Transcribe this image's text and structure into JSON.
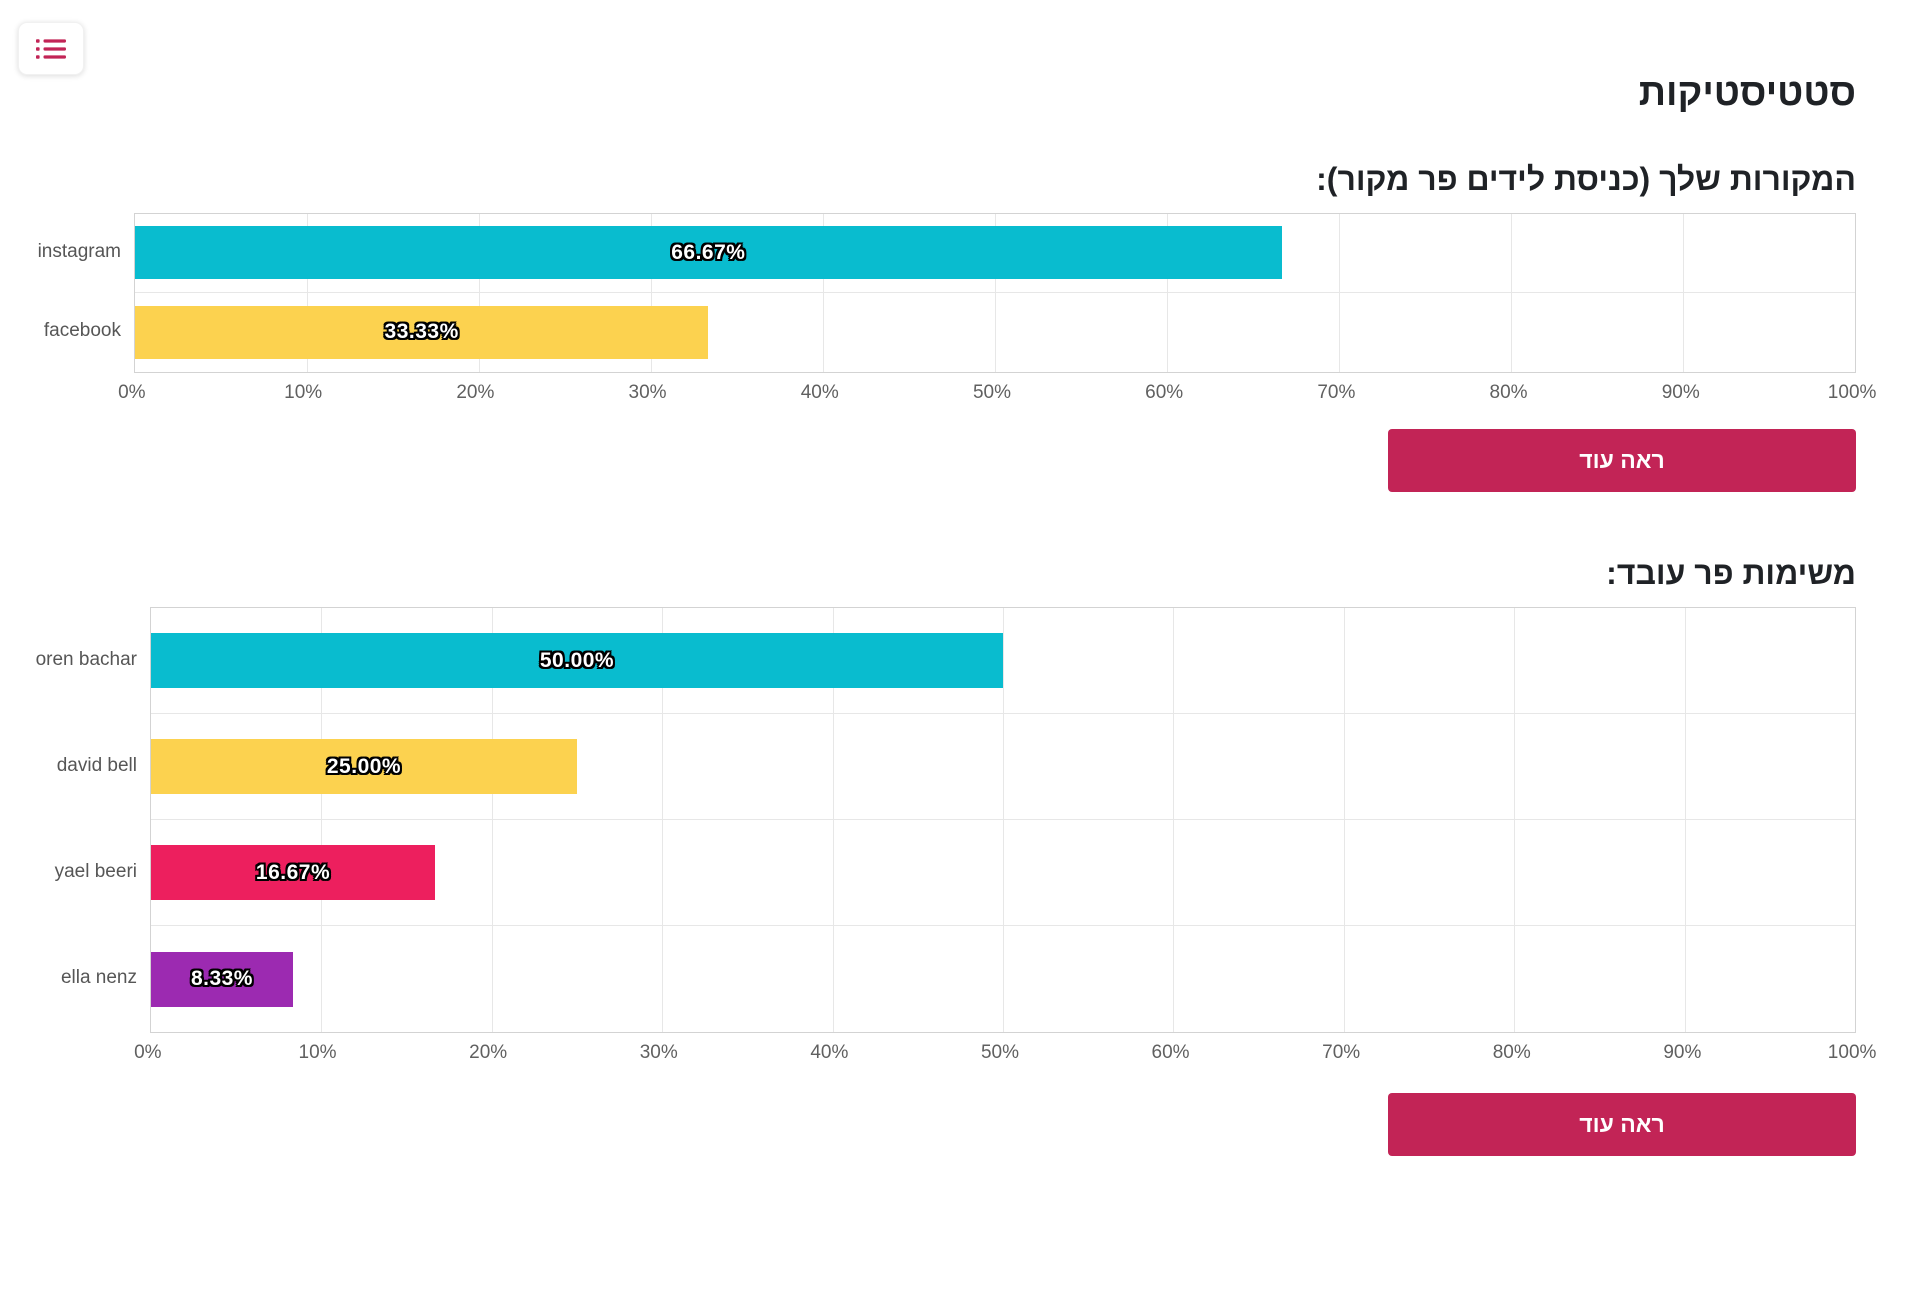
{
  "app": {
    "title": "סטטיסטיקות"
  },
  "toolbar": {
    "menu_icon": "list-icon"
  },
  "colors": {
    "accent": "#c22456",
    "cyan": "#09bccf",
    "yellow": "#fcd24f",
    "pink": "#ed1f5e",
    "purple": "#9c2ab1",
    "grid": "#e7e7e7",
    "text_dark": "#1f2226",
    "text_gray": "#606060"
  },
  "chart_data": [
    {
      "type": "bar",
      "orientation": "horizontal",
      "title": "המקורות שלך (כניסת לידים פר מקור):",
      "categories": [
        "instagram",
        "facebook"
      ],
      "values": [
        66.67,
        33.33
      ],
      "value_labels": [
        "66.67%",
        "33.33%"
      ],
      "bar_colors": [
        "#09bccf",
        "#fcd24f"
      ],
      "x_ticks": [
        "0%",
        "10%",
        "20%",
        "30%",
        "40%",
        "50%",
        "60%",
        "70%",
        "80%",
        "90%",
        "100%"
      ],
      "xlim": [
        0,
        100
      ],
      "grid": true,
      "legend": "none",
      "see_more_label": "ראה עוד"
    },
    {
      "type": "bar",
      "orientation": "horizontal",
      "title": "משימות פר עובד:",
      "categories": [
        "oren bachar",
        "david bell",
        "yael beeri",
        "ella nenz"
      ],
      "values": [
        50.0,
        25.0,
        16.67,
        8.33
      ],
      "value_labels": [
        "50.00%",
        "25.00%",
        "16.67%",
        "8.33%"
      ],
      "bar_colors": [
        "#09bccf",
        "#fcd24f",
        "#ed1f5e",
        "#9c2ab1"
      ],
      "x_ticks": [
        "0%",
        "10%",
        "20%",
        "30%",
        "40%",
        "50%",
        "60%",
        "70%",
        "80%",
        "90%",
        "100%"
      ],
      "xlim": [
        0,
        100
      ],
      "grid": true,
      "legend": "none",
      "see_more_label": "ראה עוד"
    }
  ]
}
